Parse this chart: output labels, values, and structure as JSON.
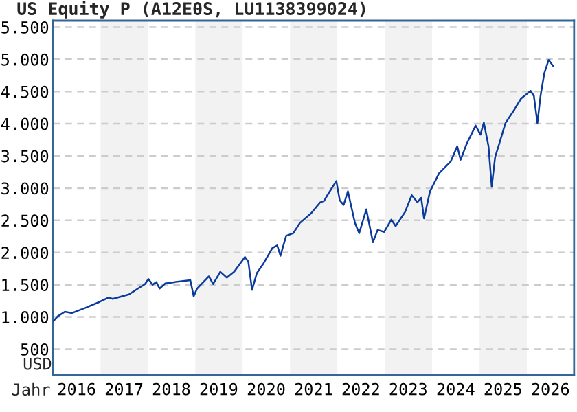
{
  "chart_data": {
    "type": "line",
    "title": "US Equity P (A12E0S, LU1138399024)",
    "xlabel": "Jahr",
    "ylabel": "USD",
    "x": [
      "2016-01-01",
      "2016-02-06",
      "2016-04-01",
      "2016-05-26",
      "2016-09-05",
      "2016-12-20",
      "2017-03-03",
      "2017-04-05",
      "2017-08-08",
      "2017-10-16",
      "2017-12-10",
      "2018-01-05",
      "2018-02-06",
      "2018-03-07",
      "2018-04-01",
      "2018-05-15",
      "2018-07-23",
      "2018-11-24",
      "2018-12-20",
      "2019-01-15",
      "2019-04-16",
      "2019-05-19",
      "2019-07-13",
      "2019-09-02",
      "2019-10-27",
      "2020-01-19",
      "2020-02-14",
      "2020-03-14",
      "2020-04-20",
      "2020-06-10",
      "2020-08-18",
      "2020-09-24",
      "2020-10-19",
      "2020-12-02",
      "2021-01-26",
      "2021-03-18",
      "2021-06-13",
      "2021-08-22",
      "2021-09-20",
      "2021-10-16",
      "2021-11-25",
      "2021-12-24",
      "2022-01-19",
      "2022-02-18",
      "2022-03-23",
      "2022-05-16",
      "2022-06-18",
      "2022-08-12",
      "2022-10-02",
      "2022-11-07",
      "2022-12-28",
      "2023-02-21",
      "2023-03-26",
      "2023-06-07",
      "2023-07-28",
      "2023-09-10",
      "2023-10-09",
      "2023-10-31",
      "2023-12-16",
      "2024-02-24",
      "2024-05-23",
      "2024-07-13",
      "2024-08-08",
      "2024-09-24",
      "2024-12-02",
      "2025-01-08",
      "2025-02-03",
      "2025-03-11",
      "2025-04-05",
      "2025-05-01",
      "2025-05-27",
      "2025-07-20",
      "2025-09-27",
      "2025-11-17",
      "2026-01-30",
      "2026-02-24",
      "2026-03-23",
      "2026-04-16",
      "2026-05-15",
      "2026-06-18",
      "2026-07-24"
    ],
    "series": [
      {
        "color": "#0a3a9c",
        "values": [
          930,
          1010,
          1080,
          1060,
          1140,
          1230,
          1300,
          1280,
          1350,
          1440,
          1510,
          1590,
          1500,
          1540,
          1440,
          1520,
          1540,
          1570,
          1320,
          1440,
          1630,
          1510,
          1700,
          1610,
          1700,
          1930,
          1860,
          1420,
          1680,
          1830,
          2070,
          2110,
          1950,
          2260,
          2300,
          2460,
          2610,
          2780,
          2800,
          2890,
          3020,
          3110,
          2810,
          2740,
          2950,
          2460,
          2300,
          2670,
          2160,
          2350,
          2320,
          2510,
          2410,
          2630,
          2890,
          2780,
          2850,
          2530,
          2950,
          3230,
          3410,
          3650,
          3440,
          3690,
          3970,
          3830,
          4020,
          3650,
          3020,
          3480,
          3650,
          4010,
          4220,
          4390,
          4510,
          4430,
          4010,
          4430,
          4780,
          4990,
          4890
        ]
      }
    ],
    "xlim": [
      "2016-01-01",
      "2026-12-31"
    ],
    "xticks": [
      {
        "value": "2016-07-01",
        "label": "2016"
      },
      {
        "value": "2017-07-01",
        "label": "2017"
      },
      {
        "value": "2018-07-01",
        "label": "2018"
      },
      {
        "value": "2019-07-01",
        "label": "2019"
      },
      {
        "value": "2020-07-01",
        "label": "2020"
      },
      {
        "value": "2021-07-01",
        "label": "2021"
      },
      {
        "value": "2022-07-01",
        "label": "2022"
      },
      {
        "value": "2023-07-01",
        "label": "2023"
      },
      {
        "value": "2024-07-01",
        "label": "2024"
      },
      {
        "value": "2025-07-01",
        "label": "2025"
      },
      {
        "value": "2026-07-01",
        "label": "2026"
      }
    ],
    "ylim": [
      100,
      5600
    ],
    "yticks": [
      {
        "value": 500,
        "label": "500"
      },
      {
        "value": 1000,
        "label": "1.000"
      },
      {
        "value": 1500,
        "label": "1.500"
      },
      {
        "value": 2000,
        "label": "2.000"
      },
      {
        "value": 2500,
        "label": "2.500"
      },
      {
        "value": 3000,
        "label": "3.000"
      },
      {
        "value": 3500,
        "label": "3.500"
      },
      {
        "value": 4000,
        "label": "4.000"
      },
      {
        "value": 4500,
        "label": "4.500"
      },
      {
        "value": 5000,
        "label": "5.000"
      },
      {
        "value": 5500,
        "label": "5.500"
      }
    ],
    "grid": "y",
    "bands": [
      {
        "axis": "x",
        "from": "2017-01-01",
        "to": "2018-01-01",
        "color": "#f2f2f2"
      },
      {
        "axis": "x",
        "from": "2019-01-01",
        "to": "2020-01-01",
        "color": "#f2f2f2"
      },
      {
        "axis": "x",
        "from": "2021-01-01",
        "to": "2022-01-01",
        "color": "#f2f2f2"
      },
      {
        "axis": "x",
        "from": "2023-01-01",
        "to": "2024-01-01",
        "color": "#f2f2f2"
      },
      {
        "axis": "x",
        "from": "2025-01-01",
        "to": "2026-01-01",
        "color": "#f2f2f2"
      }
    ]
  }
}
